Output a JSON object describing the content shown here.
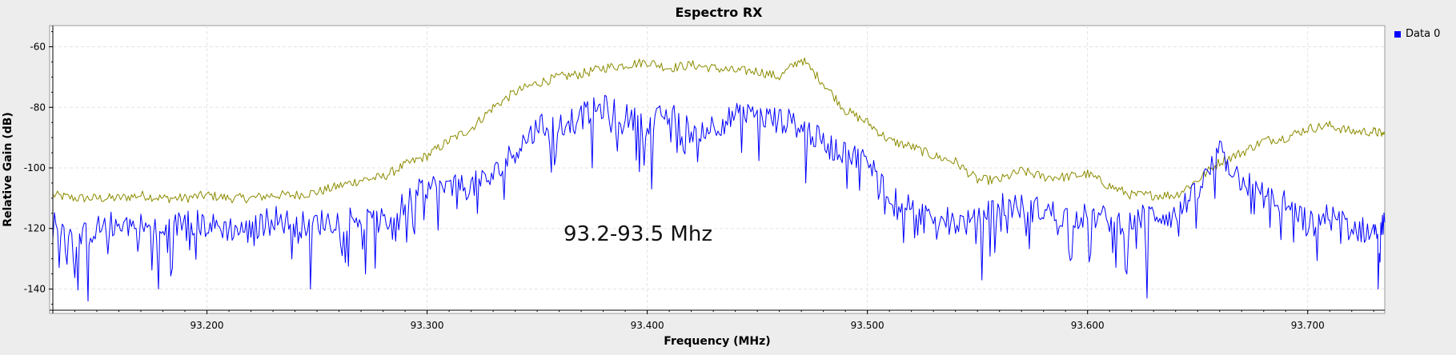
{
  "chart_data": {
    "type": "line",
    "title": "Espectro RX",
    "xlabel": "Frequency (MHz)",
    "ylabel": "Relative Gain (dB)",
    "xlim": [
      93.13,
      93.735
    ],
    "ylim": [
      -147,
      -53
    ],
    "xticks": [
      93.2,
      93.3,
      93.4,
      93.5,
      93.6,
      93.7
    ],
    "xtick_labels": [
      "93.200",
      "93.300",
      "93.400",
      "93.500",
      "93.600",
      "93.700"
    ],
    "yticks": [
      -60,
      -80,
      -100,
      -120,
      -140
    ],
    "ytick_labels": [
      "-60",
      "-80",
      "-100",
      "-120",
      "-140"
    ],
    "grid": true,
    "legend_position": "top-right",
    "annotation": "93.2-93.5 Mhz",
    "series": [
      {
        "name": "Data 0",
        "color": "#0000ff",
        "x": [
          93.13,
          93.14,
          93.15,
          93.16,
          93.17,
          93.18,
          93.19,
          93.2,
          93.21,
          93.22,
          93.23,
          93.24,
          93.25,
          93.26,
          93.27,
          93.28,
          93.29,
          93.3,
          93.31,
          93.32,
          93.33,
          93.34,
          93.35,
          93.36,
          93.37,
          93.38,
          93.39,
          93.4,
          93.41,
          93.42,
          93.43,
          93.44,
          93.45,
          93.46,
          93.47,
          93.48,
          93.49,
          93.5,
          93.51,
          93.52,
          93.53,
          93.54,
          93.55,
          93.56,
          93.57,
          93.58,
          93.59,
          93.6,
          93.61,
          93.62,
          93.63,
          93.64,
          93.65,
          93.66,
          93.67,
          93.68,
          93.69,
          93.7,
          93.71,
          93.72,
          93.73,
          93.735
        ],
        "y": [
          -117,
          -124,
          -120,
          -118,
          -119,
          -122,
          -117,
          -119,
          -120,
          -121,
          -116,
          -119,
          -118,
          -117,
          -116,
          -118,
          -112,
          -106,
          -107,
          -106,
          -103,
          -94,
          -87,
          -85,
          -83,
          -80,
          -83,
          -86,
          -82,
          -88,
          -86,
          -83,
          -83,
          -84,
          -86,
          -92,
          -95,
          -98,
          -108,
          -114,
          -115,
          -118,
          -118,
          -112,
          -113,
          -114,
          -116,
          -116,
          -117,
          -118,
          -115,
          -116,
          -108,
          -95,
          -104,
          -109,
          -112,
          -118,
          -116,
          -120,
          -121,
          -118
        ],
        "dips": [
          {
            "x": 93.146,
            "y": -144
          },
          {
            "x": 93.178,
            "y": -140
          },
          {
            "x": 93.247,
            "y": -140
          },
          {
            "x": 93.272,
            "y": -135
          },
          {
            "x": 93.375,
            "y": -100
          },
          {
            "x": 93.402,
            "y": -107
          },
          {
            "x": 93.472,
            "y": -105
          },
          {
            "x": 93.552,
            "y": -137
          },
          {
            "x": 93.627,
            "y": -143
          },
          {
            "x": 93.732,
            "y": -140
          }
        ]
      },
      {
        "name": "",
        "color": "#8b8b00",
        "x": [
          93.13,
          93.14,
          93.15,
          93.16,
          93.17,
          93.18,
          93.19,
          93.2,
          93.21,
          93.22,
          93.23,
          93.24,
          93.25,
          93.26,
          93.27,
          93.28,
          93.29,
          93.3,
          93.31,
          93.32,
          93.33,
          93.34,
          93.35,
          93.36,
          93.37,
          93.38,
          93.39,
          93.4,
          93.41,
          93.42,
          93.43,
          93.44,
          93.45,
          93.46,
          93.47,
          93.48,
          93.49,
          93.5,
          93.51,
          93.52,
          93.53,
          93.54,
          93.55,
          93.56,
          93.57,
          93.58,
          93.59,
          93.6,
          93.61,
          93.62,
          93.63,
          93.64,
          93.65,
          93.66,
          93.67,
          93.68,
          93.69,
          93.7,
          93.71,
          93.72,
          93.73,
          93.735
        ],
        "y": [
          -109,
          -110,
          -110,
          -110,
          -109,
          -110,
          -110,
          -109,
          -110,
          -110,
          -109,
          -109,
          -108,
          -106,
          -104,
          -103,
          -99,
          -96,
          -91,
          -87,
          -80,
          -75,
          -72,
          -70,
          -69,
          -67,
          -66,
          -65,
          -67,
          -66,
          -67,
          -68,
          -68,
          -70,
          -64,
          -72,
          -81,
          -85,
          -91,
          -93,
          -96,
          -98,
          -104,
          -104,
          -101,
          -103,
          -103,
          -102,
          -106,
          -109,
          -109,
          -109,
          -104,
          -98,
          -95,
          -91,
          -90,
          -87,
          -86,
          -88,
          -88,
          -89
        ]
      }
    ]
  }
}
